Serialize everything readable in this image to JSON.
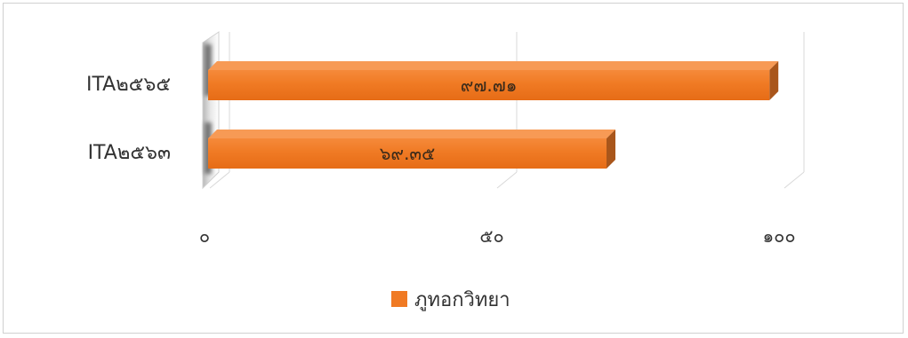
{
  "chart_data": {
    "type": "bar",
    "orientation": "horizontal",
    "three_d": true,
    "categories": [
      "ITA๒๕๖๓",
      "ITA๒๕๖๕"
    ],
    "series": [
      {
        "name": "ภูทอกวิทยา",
        "values": [
          69.35,
          97.71
        ],
        "value_labels": [
          "๖๙.๓๕",
          "๙๗.๗๑"
        ],
        "color": "#f07a24"
      }
    ],
    "xlim": [
      0,
      100
    ],
    "x_ticks": [
      {
        "value": 0,
        "label": "๐"
      },
      {
        "value": 50,
        "label": "๕๐"
      },
      {
        "value": 100,
        "label": "๑๐๐"
      }
    ],
    "grid": true,
    "legend_position": "bottom"
  }
}
